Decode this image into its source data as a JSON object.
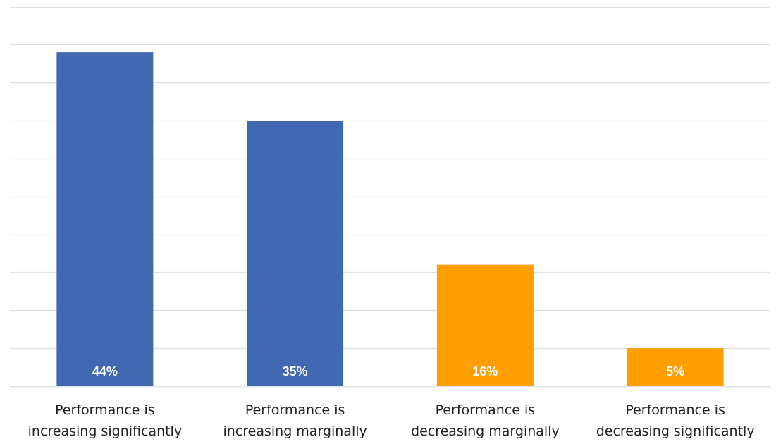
{
  "chart_data": {
    "type": "bar",
    "categories": [
      [
        "Performance is",
        "increasing significantly"
      ],
      [
        "Performance is",
        "increasing marginally"
      ],
      [
        "Performance is",
        "decreasing marginally"
      ],
      [
        "Performance is",
        "decreasing significantly"
      ]
    ],
    "values": [
      44,
      35,
      16,
      5
    ],
    "data_labels": [
      "44%",
      "35%",
      "16%",
      "5%"
    ],
    "bar_colors": [
      "#4169b1",
      "#4169b1",
      "#ff9e00",
      "#ff9e00"
    ],
    "ylim": [
      0,
      50
    ],
    "grid": true,
    "gridline_color": "#dde0e6",
    "title": "",
    "xlabel": "",
    "ylabel": ""
  }
}
